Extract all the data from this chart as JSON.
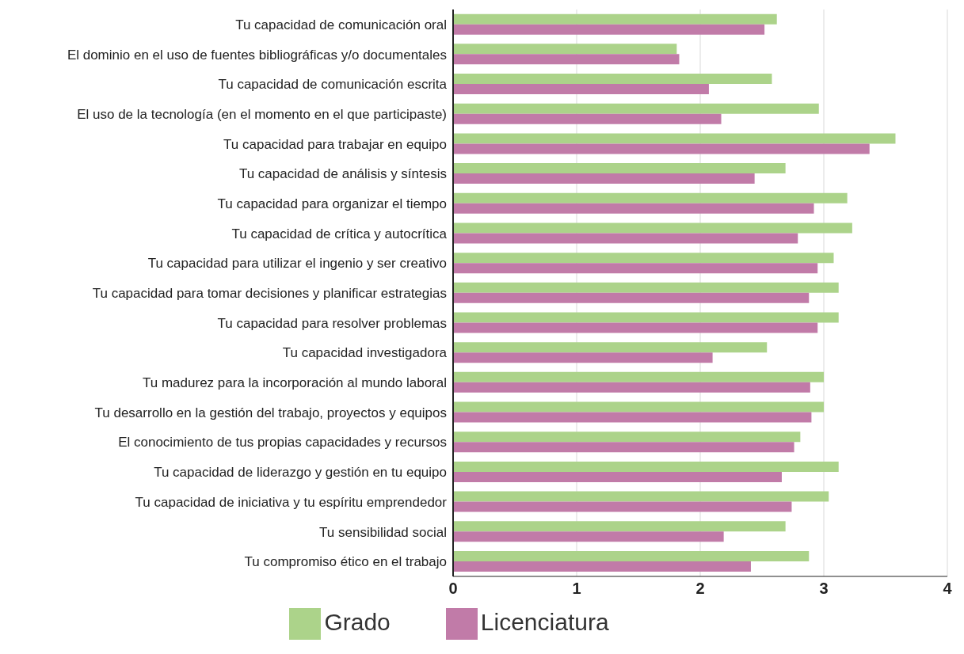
{
  "chart_data": {
    "type": "bar",
    "orientation": "horizontal",
    "categories": [
      "Tu capacidad de comunicación oral",
      "El dominio en el uso de fuentes bibliográficas y/o documentales",
      "Tu capacidad de comunicación escrita",
      "El uso de la tecnología (en el momento en el que participaste)",
      "Tu capacidad para trabajar en equipo",
      "Tu capacidad de análisis y síntesis",
      "Tu capacidad para organizar el tiempo",
      "Tu capacidad de crítica y autocrítica",
      "Tu capacidad para utilizar el ingenio y ser creativo",
      "Tu capacidad para tomar decisiones y planificar estrategias",
      "Tu capacidad para resolver problemas",
      "Tu capacidad investigadora",
      "Tu madurez para la incorporación al mundo laboral",
      "Tu desarrollo en la gestión del trabajo, proyectos y equipos",
      "El conocimiento de tus propias capacidades y recursos",
      "Tu capacidad de liderazgo y gestión en tu equipo",
      "Tu capacidad de iniciativa y tu espíritu emprendedor",
      "Tu sensibilidad social",
      "Tu compromiso ético en el trabajo"
    ],
    "series": [
      {
        "name": "Grado",
        "color": "#acd38a",
        "values": [
          2.62,
          1.81,
          2.58,
          2.96,
          3.58,
          2.69,
          3.19,
          3.23,
          3.08,
          3.12,
          3.12,
          2.54,
          3.0,
          3.0,
          2.81,
          3.12,
          3.04,
          2.69,
          2.88
        ]
      },
      {
        "name": "Licenciatura",
        "color": "#c17ba8",
        "values": [
          2.52,
          1.83,
          2.07,
          2.17,
          3.37,
          2.44,
          2.92,
          2.79,
          2.95,
          2.88,
          2.95,
          2.1,
          2.89,
          2.9,
          2.76,
          2.66,
          2.74,
          2.19,
          2.41
        ]
      }
    ],
    "xlim": [
      0,
      4
    ],
    "xticks": [
      0,
      1,
      2,
      3,
      4
    ],
    "grid": "x",
    "legend": "bottom"
  }
}
